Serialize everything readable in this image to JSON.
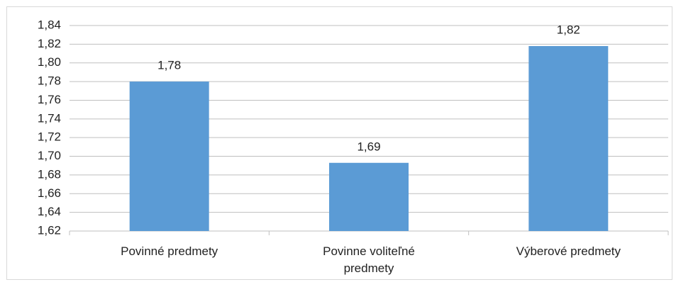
{
  "chart_data": {
    "type": "bar",
    "categories": [
      "Povinné predmety",
      "Povinne voliteľné predmety",
      "Výberové predmety"
    ],
    "values": [
      1.78,
      1.693,
      1.818
    ],
    "value_labels": [
      "1,78",
      "1,69",
      "1,82"
    ],
    "color": "#5b9bd5",
    "ylim": [
      1.62,
      1.84
    ],
    "yticks": [
      {
        "value": 1.62,
        "label": "1,62"
      },
      {
        "value": 1.64,
        "label": "1,64"
      },
      {
        "value": 1.66,
        "label": "1,66"
      },
      {
        "value": 1.68,
        "label": "1,68"
      },
      {
        "value": 1.7,
        "label": "1,70"
      },
      {
        "value": 1.72,
        "label": "1,72"
      },
      {
        "value": 1.74,
        "label": "1,74"
      },
      {
        "value": 1.76,
        "label": "1,76"
      },
      {
        "value": 1.78,
        "label": "1,78"
      },
      {
        "value": 1.8,
        "label": "1,80"
      },
      {
        "value": 1.82,
        "label": "1,82"
      },
      {
        "value": 1.84,
        "label": "1,84"
      }
    ],
    "grid": true
  }
}
